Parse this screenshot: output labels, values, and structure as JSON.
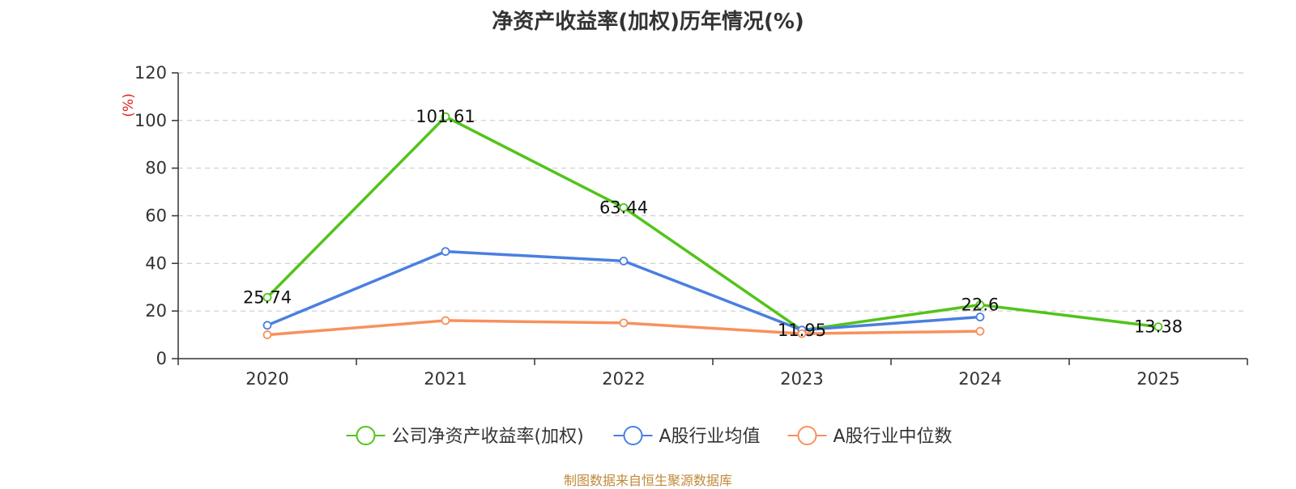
{
  "chart_data": {
    "type": "line",
    "title": "净资产收益率(加权)历年情况(%)",
    "ylabel": "(%)",
    "xlabel": "",
    "ylim": [
      0,
      120
    ],
    "yticks": [
      0,
      20,
      40,
      60,
      80,
      100,
      120
    ],
    "categories": [
      "2020",
      "2021",
      "2022",
      "2023",
      "2024",
      "2025"
    ],
    "grid": true,
    "legend_position": "bottom",
    "series": [
      {
        "name": "公司净资产收益率(加权)",
        "color": "#52c41a",
        "values": [
          25.74,
          101.61,
          63.44,
          11.95,
          22.6,
          13.38
        ],
        "labels": [
          "25.74",
          "101.61",
          "63.44",
          "11.95",
          "22.6",
          "13.38"
        ]
      },
      {
        "name": "A股行业均值",
        "color": "#4a7fe0",
        "values": [
          14,
          45,
          41,
          12,
          17.5,
          null
        ]
      },
      {
        "name": "A股行业中位数",
        "color": "#f7915e",
        "values": [
          10,
          16,
          15,
          10.5,
          11.5,
          null
        ]
      }
    ]
  },
  "source": "制图数据来自恒生聚源数据库",
  "colors": {
    "axis": "#333333",
    "grid": "#cccccc",
    "ylabel": "#e02020",
    "source": "#c08a3a"
  }
}
